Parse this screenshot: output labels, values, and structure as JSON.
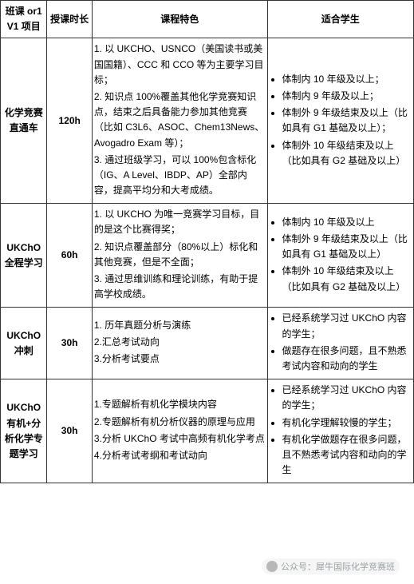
{
  "table": {
    "headers": [
      "班课 or1V1 项目",
      "授课时长",
      "课程特色",
      "适合学生"
    ],
    "rows": [
      {
        "name": "化学竞赛直通车",
        "duration": "120h",
        "features": [
          "1. 以 UKCHO、USNCO（美国读书或美国国籍）、CCC 和 CCO 等为主要学习目标；",
          "2. 知识点 100%覆盖其他化学竞赛知识点，结束之后具备能力参加其他竞赛（比如 C3L6、ASOC、Chem13News、Avogadro Exam 等）；",
          "3. 通过班级学习，可以 100%包含标化（IG、A Level、IBDP、AP）全部内容，提高平均分和大考成绩。"
        ],
        "students": [
          "体制内 10 年级及以上；",
          "体制内 9 年级及以上；",
          "体制外 9 年级结束及以上（比如具有 G1 基础及以上）；",
          "体制外 10 年级结束及以上（比如具有 G2 基础及以上）"
        ]
      },
      {
        "name": "UKChO全程学习",
        "duration": "60h",
        "features": [
          "1. 以 UKCHO 为唯一竞赛学习目标，目的是这个比赛得奖；",
          "2. 知识点覆盖部分（80%以上）标化和其他竞赛，但是不全面；",
          "3. 通过思维训练和理论训练，有助于提高学校成绩。"
        ],
        "students": [
          "体制内 10 年级及以上",
          "体制外 9 年级结束及以上（比如具有 G1 基础及以上）",
          "体制外 10 年级结束及以上（比如具有 G2 基础及以上）"
        ]
      },
      {
        "name": "UKChO冲刺",
        "duration": "30h",
        "features": [
          "1. 历年真题分析与演练",
          "2.汇总考试动向",
          "3.分析考试要点"
        ],
        "students": [
          "已经系统学习过 UKChO 内容的学生；",
          "做题存在很多问题，且不熟悉考试内容和动向的学生"
        ]
      },
      {
        "name": "UKChO有机+分析化学专题学习",
        "duration": "30h",
        "features": [
          "1.专题解析有机化学模块内容",
          "2.专题解析有机分析仪器的原理与应用",
          "3.分析 UKChO 考试中高频有机化学考点",
          "4.分析考试考纲和考试动向"
        ],
        "students": [
          "已经系统学习过 UKChO 内容的学生；",
          "有机化学理解较慢的学生；",
          "有机化学做题存在很多问题，且不熟悉考试内容和动向的学生"
        ]
      }
    ]
  },
  "watermark": "公众号：犀牛国际化学竞赛班",
  "colors": {
    "border": "#333333",
    "text": "#000000",
    "background": "#ffffff",
    "watermark": "#9aa0a0"
  }
}
